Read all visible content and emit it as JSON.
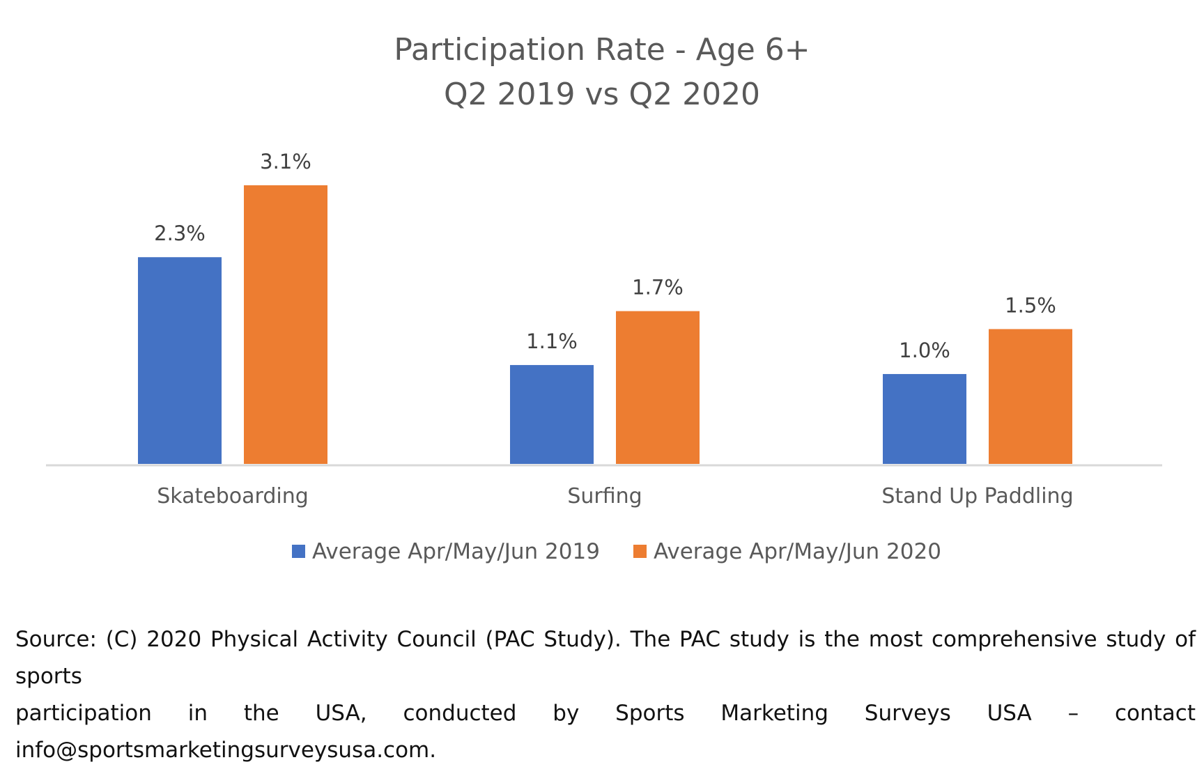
{
  "chart_data": {
    "type": "bar",
    "title": [
      "Participation Rate - Age 6+",
      "Q2 2019 vs Q2 2020"
    ],
    "categories": [
      "Skateboarding",
      "Surfing",
      "Stand Up Paddling"
    ],
    "series": [
      {
        "name": "Average Apr/May/Jun 2019",
        "color": "#4472C4",
        "values": [
          2.3,
          1.1,
          1.0
        ],
        "labels": [
          "2.3%",
          "1.1%",
          "1.0%"
        ]
      },
      {
        "name": "Average Apr/May/Jun 2020",
        "color": "#ED7D31",
        "values": [
          3.1,
          1.7,
          1.5
        ],
        "labels": [
          "3.1%",
          "1.7%",
          "1.5%"
        ]
      }
    ],
    "ylim": [
      0,
      3.5
    ],
    "xlabel": "",
    "ylabel": "",
    "grid": false,
    "legend": "bottom"
  },
  "source": {
    "line1": "Source: (C) 2020 Physical Activity Council (PAC Study). The PAC study is the most comprehensive study of sports",
    "line2": "participation in the USA, conducted by Sports Marketing Surveys USA – contact",
    "line3": "info@sportsmarketingsurveysusa.com."
  }
}
